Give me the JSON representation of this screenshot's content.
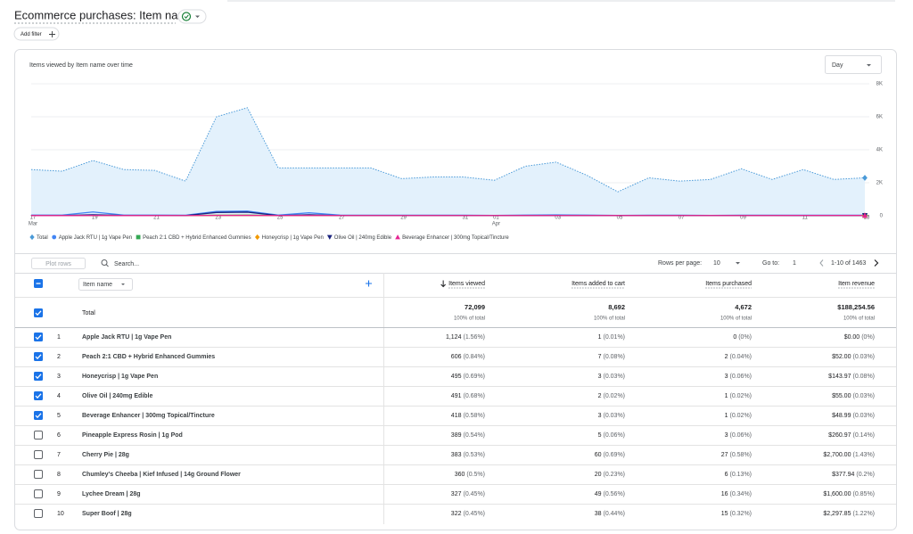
{
  "header": {
    "title": "Ecommerce purchases: Item name",
    "add_filter": "Add filter"
  },
  "chart_data": {
    "type": "line",
    "title": "Items viewed by Item name over time",
    "granularity": "Day",
    "categories": [
      "17",
      null,
      "19",
      null,
      "21",
      null,
      "23",
      null,
      "25",
      null,
      "27",
      null,
      "29",
      null,
      "31",
      "01",
      null,
      "03",
      null,
      "05",
      null,
      "07",
      null,
      "09",
      null,
      "11",
      null,
      "13"
    ],
    "category_months": [
      "Mar",
      null,
      null,
      null,
      null,
      null,
      null,
      null,
      null,
      null,
      null,
      null,
      null,
      null,
      null,
      "Apr",
      null,
      null,
      null,
      null,
      null,
      null,
      null,
      null,
      null,
      null,
      null,
      null
    ],
    "ylim": [
      0,
      8000
    ],
    "yticks": [
      0,
      {
        "value": 2000,
        "label": "2K"
      },
      {
        "value": 4000,
        "label": "4K"
      },
      {
        "value": 6000,
        "label": "6K"
      },
      {
        "value": 8000,
        "label": "8K"
      }
    ],
    "grid": true,
    "series": [
      {
        "name": "Total",
        "color": "#4a9ad8",
        "area_color": "#e3f1fc",
        "marker": "diamond",
        "dotted": true,
        "values": [
          2800,
          2700,
          3350,
          2800,
          2750,
          2100,
          6000,
          6550,
          2900,
          2900,
          2900,
          2900,
          2250,
          2350,
          2350,
          2150,
          3000,
          3250,
          2450,
          1450,
          2300,
          2100,
          2200,
          2850,
          2200,
          2800,
          2200,
          2300
        ]
      },
      {
        "name": "Apple Jack RTU | 1g Vape Pen",
        "color": "#4285f4",
        "marker": "circle",
        "values": [
          40,
          40,
          230,
          40,
          40,
          30,
          260,
          280,
          40,
          180,
          40,
          30,
          30,
          30,
          30,
          20,
          40,
          50,
          40,
          20,
          30,
          30,
          20,
          30,
          30,
          30,
          30,
          30
        ]
      },
      {
        "name": "Peach 2:1 CBD + Hybrid Enhanced Gummies",
        "color": "#34a853",
        "marker": "square",
        "values": [
          20,
          20,
          30,
          20,
          20,
          20,
          30,
          40,
          20,
          20,
          20,
          20,
          20,
          20,
          20,
          20,
          20,
          20,
          20,
          20,
          20,
          20,
          20,
          20,
          20,
          20,
          20,
          20
        ]
      },
      {
        "name": "Honeycrisp | 1g Vape Pen",
        "color": "#f29900",
        "marker": "diamond",
        "values": [
          15,
          15,
          20,
          15,
          15,
          15,
          25,
          25,
          15,
          15,
          15,
          15,
          15,
          15,
          15,
          15,
          15,
          20,
          20,
          15,
          15,
          15,
          15,
          15,
          20,
          20,
          15,
          15
        ]
      },
      {
        "name": "Olive Oil | 240mg Edible",
        "color": "#1a237e",
        "marker": "triangle-down",
        "values": [
          15,
          15,
          60,
          15,
          15,
          15,
          200,
          220,
          15,
          60,
          15,
          15,
          15,
          15,
          15,
          15,
          15,
          15,
          15,
          15,
          15,
          15,
          15,
          15,
          15,
          15,
          15,
          15
        ]
      },
      {
        "name": "Beverage Enhancer | 300mg Topical/Tincture",
        "color": "#e52592",
        "marker": "triangle",
        "values": [
          10,
          10,
          15,
          10,
          10,
          15,
          20,
          20,
          15,
          15,
          15,
          15,
          15,
          15,
          15,
          15,
          15,
          15,
          15,
          15,
          15,
          15,
          15,
          15,
          15,
          20,
          20,
          20
        ]
      }
    ]
  },
  "table": {
    "toolbar": {
      "plot_rows": "Plot rows",
      "search": "Search...",
      "rows_per_page_label": "Rows per page:",
      "rows_per_page": "10",
      "goto_label": "Go to:",
      "goto": "1",
      "range": "1-10 of 1463"
    },
    "dimension": "Item name",
    "columns": [
      {
        "label": "Items viewed",
        "sorted": true
      },
      {
        "label": "Items added to cart",
        "sorted": false
      },
      {
        "label": "Items purchased",
        "sorted": false
      },
      {
        "label": "Item revenue",
        "sorted": false
      }
    ],
    "total": {
      "label": "Total",
      "checked": true,
      "cells": [
        {
          "value": "72,099",
          "share": "100% of total"
        },
        {
          "value": "8,692",
          "share": "100% of total"
        },
        {
          "value": "4,672",
          "share": "100% of total"
        },
        {
          "value": "$188,254.56",
          "share": "100% of total"
        }
      ]
    },
    "rows": [
      {
        "checked": true,
        "rank": "1",
        "name": "Apple Jack RTU | 1g Vape Pen",
        "cells": [
          {
            "value": "1,124",
            "share": "(1.56%)"
          },
          {
            "value": "1",
            "share": "(0.01%)"
          },
          {
            "value": "0",
            "share": "(0%)"
          },
          {
            "value": "$0.00",
            "share": "(0%)"
          }
        ]
      },
      {
        "checked": true,
        "rank": "2",
        "name": "Peach 2:1 CBD + Hybrid Enhanced Gummies",
        "cells": [
          {
            "value": "606",
            "share": "(0.84%)"
          },
          {
            "value": "7",
            "share": "(0.08%)"
          },
          {
            "value": "2",
            "share": "(0.04%)"
          },
          {
            "value": "$52.00",
            "share": "(0.03%)"
          }
        ]
      },
      {
        "checked": true,
        "rank": "3",
        "name": "Honeycrisp | 1g Vape Pen",
        "cells": [
          {
            "value": "495",
            "share": "(0.69%)"
          },
          {
            "value": "3",
            "share": "(0.03%)"
          },
          {
            "value": "3",
            "share": "(0.06%)"
          },
          {
            "value": "$143.97",
            "share": "(0.08%)"
          }
        ]
      },
      {
        "checked": true,
        "rank": "4",
        "name": "Olive Oil | 240mg Edible",
        "cells": [
          {
            "value": "491",
            "share": "(0.68%)"
          },
          {
            "value": "2",
            "share": "(0.02%)"
          },
          {
            "value": "1",
            "share": "(0.02%)"
          },
          {
            "value": "$55.00",
            "share": "(0.03%)"
          }
        ]
      },
      {
        "checked": true,
        "rank": "5",
        "name": "Beverage Enhancer | 300mg Topical/Tincture",
        "cells": [
          {
            "value": "418",
            "share": "(0.58%)"
          },
          {
            "value": "3",
            "share": "(0.03%)"
          },
          {
            "value": "1",
            "share": "(0.02%)"
          },
          {
            "value": "$48.99",
            "share": "(0.03%)"
          }
        ]
      },
      {
        "checked": false,
        "rank": "6",
        "name": "Pineapple Express Rosin | 1g Pod",
        "cells": [
          {
            "value": "389",
            "share": "(0.54%)"
          },
          {
            "value": "5",
            "share": "(0.06%)"
          },
          {
            "value": "3",
            "share": "(0.06%)"
          },
          {
            "value": "$260.97",
            "share": "(0.14%)"
          }
        ]
      },
      {
        "checked": false,
        "rank": "7",
        "name": "Cherry Pie | 28g",
        "cells": [
          {
            "value": "383",
            "share": "(0.53%)"
          },
          {
            "value": "60",
            "share": "(0.69%)"
          },
          {
            "value": "27",
            "share": "(0.58%)"
          },
          {
            "value": "$2,700.00",
            "share": "(1.43%)"
          }
        ]
      },
      {
        "checked": false,
        "rank": "8",
        "name": "Chumley's Cheeba | Kief Infused | 14g Ground Flower",
        "cells": [
          {
            "value": "360",
            "share": "(0.5%)"
          },
          {
            "value": "20",
            "share": "(0.23%)"
          },
          {
            "value": "6",
            "share": "(0.13%)"
          },
          {
            "value": "$377.94",
            "share": "(0.2%)"
          }
        ]
      },
      {
        "checked": false,
        "rank": "9",
        "name": "Lychee Dream | 28g",
        "cells": [
          {
            "value": "327",
            "share": "(0.45%)"
          },
          {
            "value": "49",
            "share": "(0.56%)"
          },
          {
            "value": "16",
            "share": "(0.34%)"
          },
          {
            "value": "$1,600.00",
            "share": "(0.85%)"
          }
        ]
      },
      {
        "checked": false,
        "rank": "10",
        "name": "Super Boof | 28g",
        "cells": [
          {
            "value": "322",
            "share": "(0.45%)"
          },
          {
            "value": "38",
            "share": "(0.44%)"
          },
          {
            "value": "15",
            "share": "(0.32%)"
          },
          {
            "value": "$2,297.85",
            "share": "(1.22%)"
          }
        ]
      }
    ]
  }
}
